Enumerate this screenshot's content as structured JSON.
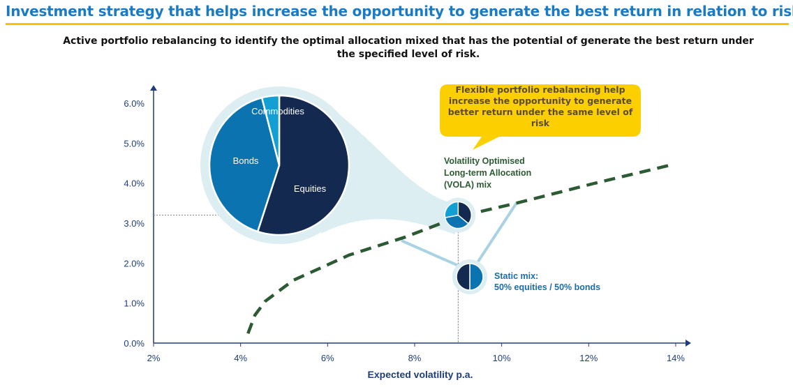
{
  "header": {
    "title": "Investment strategy that helps increase the opportunity to generate the best return in relation to risk.",
    "subtitle": "Active portfolio rebalancing to identify the optimal allocation mixed that has the potential of generate the best return under the specified level of risk."
  },
  "callout": "Flexible portfolio rebalancing help increase the opportunity to generate better return under the same level of risk",
  "colors": {
    "accent": "#1a7bc4",
    "rule": "#f4c400",
    "frontier": "#2c5a32",
    "equities": "#13294f",
    "bonds": "#0a73b0",
    "commodities": "#139fd3",
    "halo": "#ddeef2"
  },
  "chart_data": {
    "type": "line",
    "xlabel": "Expected volatility p.a.",
    "ylabel": "",
    "xlim": [
      2,
      14
    ],
    "ylim": [
      0,
      6.3
    ],
    "x_ticks": [
      "2%",
      "4%",
      "6%",
      "8%",
      "10%",
      "12%",
      "14%"
    ],
    "y_ticks": [
      "0.0%",
      "1.0%",
      "2.0%",
      "3.0%",
      "4.0%",
      "5.0%",
      "6.0%"
    ],
    "series": [
      {
        "style": "dashed",
        "points": [
          [
            4.17,
            0.24
          ],
          [
            4.33,
            0.7
          ],
          [
            4.57,
            1.05
          ],
          [
            5.21,
            1.57
          ],
          [
            6.49,
            2.2
          ],
          [
            7.78,
            2.65
          ],
          [
            9.03,
            3.17
          ],
          [
            10.34,
            3.5
          ],
          [
            12.11,
            3.99
          ],
          [
            13.87,
            4.45
          ]
        ]
      }
    ],
    "points": [
      {
        "label": "Volatility Optimised Long-term Allocation (VOLA) mix",
        "x": 9.0,
        "y": 3.2,
        "mix": [
          {
            "name": "Equities",
            "value": 36
          },
          {
            "name": "Bonds",
            "value": 36
          },
          {
            "name": "Commodities",
            "value": 28
          }
        ]
      },
      {
        "label_lines": [
          "Static mix:",
          "50% equities / 50% bonds"
        ],
        "x": 9.0,
        "y": 1.65,
        "mix": [
          {
            "name": "Equities",
            "value": 50
          },
          {
            "name": "Bonds",
            "value": 50
          }
        ]
      }
    ],
    "zoom_pie": [
      {
        "name": "Equities",
        "value": 55
      },
      {
        "name": "Bonds",
        "value": 41
      },
      {
        "name": "Commodities",
        "value": 4
      }
    ]
  }
}
